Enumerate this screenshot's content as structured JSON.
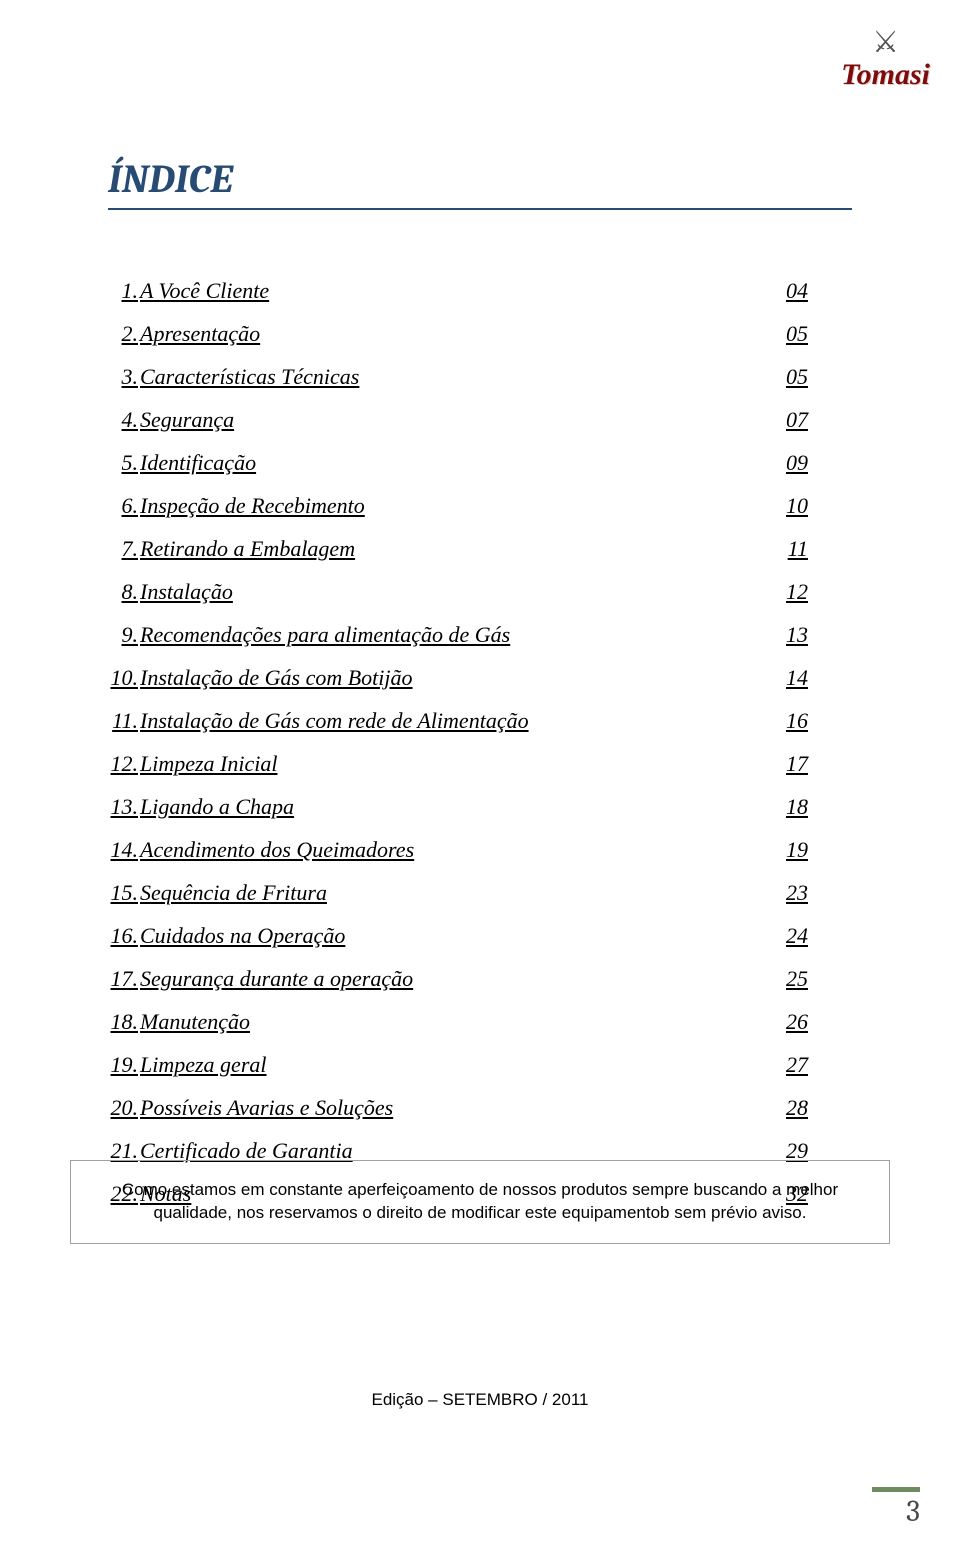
{
  "brand_name": "Tomasi",
  "page_title": "ÍNDICE",
  "title_color": "#274b73",
  "title_rule_color": "#274b73",
  "logo_accent_color": "#7b0d0d",
  "toc_fontsize": 22,
  "toc_items": [
    {
      "n": "1.",
      "label": "A Você Cliente",
      "page": "04"
    },
    {
      "n": "2.",
      "label": "Apresentação",
      "page": "05"
    },
    {
      "n": "3.",
      "label": "Características Técnicas",
      "page": "05"
    },
    {
      "n": "4.",
      "label": "Segurança",
      "page": "07"
    },
    {
      "n": "5.",
      "label": "Identificação",
      "page": "09"
    },
    {
      "n": "6.",
      "label": "Inspeção de Recebimento",
      "page": "10"
    },
    {
      "n": "7.",
      "label": "Retirando a Embalagem",
      "page": "11"
    },
    {
      "n": "8.",
      "label": "Instalação",
      "page": "12"
    },
    {
      "n": "9.",
      "label": "Recomendações para alimentação de Gás",
      "page": "13"
    },
    {
      "n": "10.",
      "label": "Instalação de Gás com Botijão",
      "page": "14"
    },
    {
      "n": "11.",
      "label": "Instalação de Gás com rede de Alimentação",
      "page": "16"
    },
    {
      "n": "12.",
      "label": "Limpeza Inicial",
      "page": "17"
    },
    {
      "n": "13.",
      "label": "Ligando a Chapa",
      "page": "18"
    },
    {
      "n": "14.",
      "label": "Acendimento dos Queimadores",
      "page": "19"
    },
    {
      "n": "15.",
      "label": "Sequência de Fritura",
      "page": "23"
    },
    {
      "n": "16.",
      "label": "Cuidados na Operação",
      "page": "24"
    },
    {
      "n": "17.",
      "label": "Segurança durante a operação",
      "page": "25"
    },
    {
      "n": "18.",
      "label": "Manutenção",
      "page": "26"
    },
    {
      "n": "19.",
      "label": "Limpeza geral",
      "page": "27"
    },
    {
      "n": "20.",
      "label": "Possíveis Avarias e Soluções",
      "page": "28"
    },
    {
      "n": "21.",
      "label": "Certificado de Garantia",
      "page": "29"
    },
    {
      "n": "22.",
      "label": "Notas",
      "page": "32"
    }
  ],
  "notice_text": "Como estamos em constante aperfeiçoamento de nossos produtos sempre buscando a melhor qualidade, nos reservamos o direito de modificar este equipamentob sem prévio aviso.",
  "edition_text": "Edição – SETEMBRO / 2011",
  "page_number": "3",
  "pagenum_bar_color": "#6e8b5f",
  "box_border_color": "#a0a0a0",
  "background_color": "#ffffff"
}
